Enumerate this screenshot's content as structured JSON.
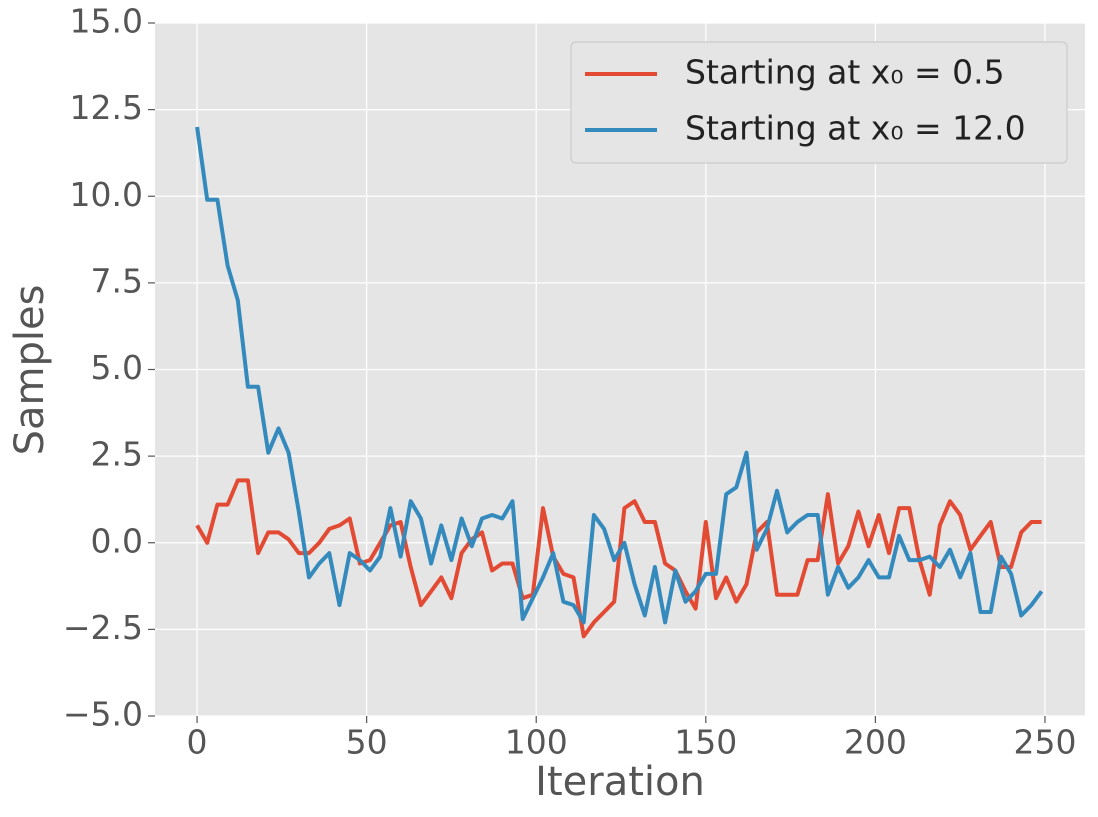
{
  "chart_data": {
    "type": "line",
    "xlabel": "Iteration",
    "ylabel": "Samples",
    "x": [
      0,
      3,
      6,
      9,
      12,
      15,
      18,
      21,
      24,
      27,
      30,
      33,
      36,
      39,
      42,
      45,
      48,
      51,
      54,
      57,
      60,
      63,
      66,
      69,
      72,
      75,
      78,
      81,
      84,
      87,
      90,
      93,
      96,
      99,
      102,
      105,
      108,
      111,
      114,
      117,
      120,
      123,
      126,
      129,
      132,
      135,
      138,
      141,
      144,
      147,
      150,
      153,
      156,
      159,
      162,
      165,
      168,
      171,
      174,
      177,
      180,
      183,
      186,
      189,
      192,
      195,
      198,
      201,
      204,
      207,
      210,
      213,
      216,
      219,
      222,
      225,
      228,
      231,
      234,
      237,
      240,
      243,
      246,
      249
    ],
    "series": [
      {
        "name": "Starting at x₀ = 0.5",
        "color": "#e24a33",
        "values": [
          0.5,
          0.0,
          1.1,
          1.1,
          1.8,
          1.8,
          -0.3,
          0.3,
          0.3,
          0.1,
          -0.3,
          -0.3,
          0.0,
          0.4,
          0.5,
          0.7,
          -0.6,
          -0.5,
          0.0,
          0.5,
          0.6,
          -0.7,
          -1.8,
          -1.4,
          -1.0,
          -1.6,
          -0.3,
          0.1,
          0.3,
          -0.8,
          -0.6,
          -0.6,
          -1.6,
          -1.5,
          1.0,
          -0.4,
          -0.9,
          -1.0,
          -2.7,
          -2.3,
          -2.0,
          -1.7,
          1.0,
          1.2,
          0.6,
          0.6,
          -0.6,
          -0.8,
          -1.4,
          -1.9,
          0.6,
          -1.6,
          -1.0,
          -1.7,
          -1.2,
          0.3,
          0.6,
          -1.5,
          -1.5,
          -1.5,
          -0.5,
          -0.5,
          1.4,
          -0.6,
          -0.1,
          0.9,
          -0.1,
          0.8,
          -0.3,
          1.0,
          1.0,
          -0.5,
          -1.5,
          0.5,
          1.2,
          0.8,
          -0.2,
          0.2,
          0.6,
          -0.7,
          -0.7,
          0.3,
          0.6,
          0.6
        ]
      },
      {
        "name": "Starting at x₀ = 12.0",
        "color": "#348abd",
        "values": [
          12.0,
          9.9,
          9.9,
          8.0,
          7.0,
          4.5,
          4.5,
          2.6,
          3.3,
          2.6,
          0.9,
          -1.0,
          -0.6,
          -0.3,
          -1.8,
          -0.3,
          -0.5,
          -0.8,
          -0.4,
          1.0,
          -0.4,
          1.2,
          0.7,
          -0.6,
          0.5,
          -0.5,
          0.7,
          -0.1,
          0.7,
          0.8,
          0.7,
          1.2,
          -2.2,
          -1.6,
          -1.0,
          -0.3,
          -1.7,
          -1.8,
          -2.3,
          0.8,
          0.4,
          -0.5,
          0.0,
          -1.2,
          -2.1,
          -0.7,
          -2.3,
          -0.8,
          -1.7,
          -1.4,
          -0.9,
          -0.9,
          1.4,
          1.6,
          2.6,
          -0.2,
          0.4,
          1.5,
          0.3,
          0.6,
          0.8,
          0.8,
          -1.5,
          -0.7,
          -1.3,
          -1.0,
          -0.5,
          -1.0,
          -1.0,
          0.2,
          -0.5,
          -0.5,
          -0.4,
          -0.7,
          -0.2,
          -1.0,
          -0.3,
          -2.0,
          -2.0,
          -0.4,
          -0.9,
          -2.1,
          -1.8,
          -1.4
        ]
      }
    ],
    "xlim": [
      -12.4,
      261.8
    ],
    "xticks": [
      0,
      50,
      100,
      150,
      200,
      250
    ],
    "ylim": [
      -5,
      15
    ],
    "yticks": [
      {
        "value": -5,
        "label": "−5.0"
      },
      {
        "value": -2.5,
        "label": "−2.5"
      },
      {
        "value": 0,
        "label": "0.0"
      },
      {
        "value": 2.5,
        "label": "2.5"
      },
      {
        "value": 5,
        "label": "5.0"
      },
      {
        "value": 7.5,
        "label": "7.5"
      },
      {
        "value": 10,
        "label": "10.0"
      },
      {
        "value": 12.5,
        "label": "12.5"
      },
      {
        "value": 15,
        "label": "15.0"
      }
    ],
    "grid": true,
    "legend": "upper right"
  }
}
